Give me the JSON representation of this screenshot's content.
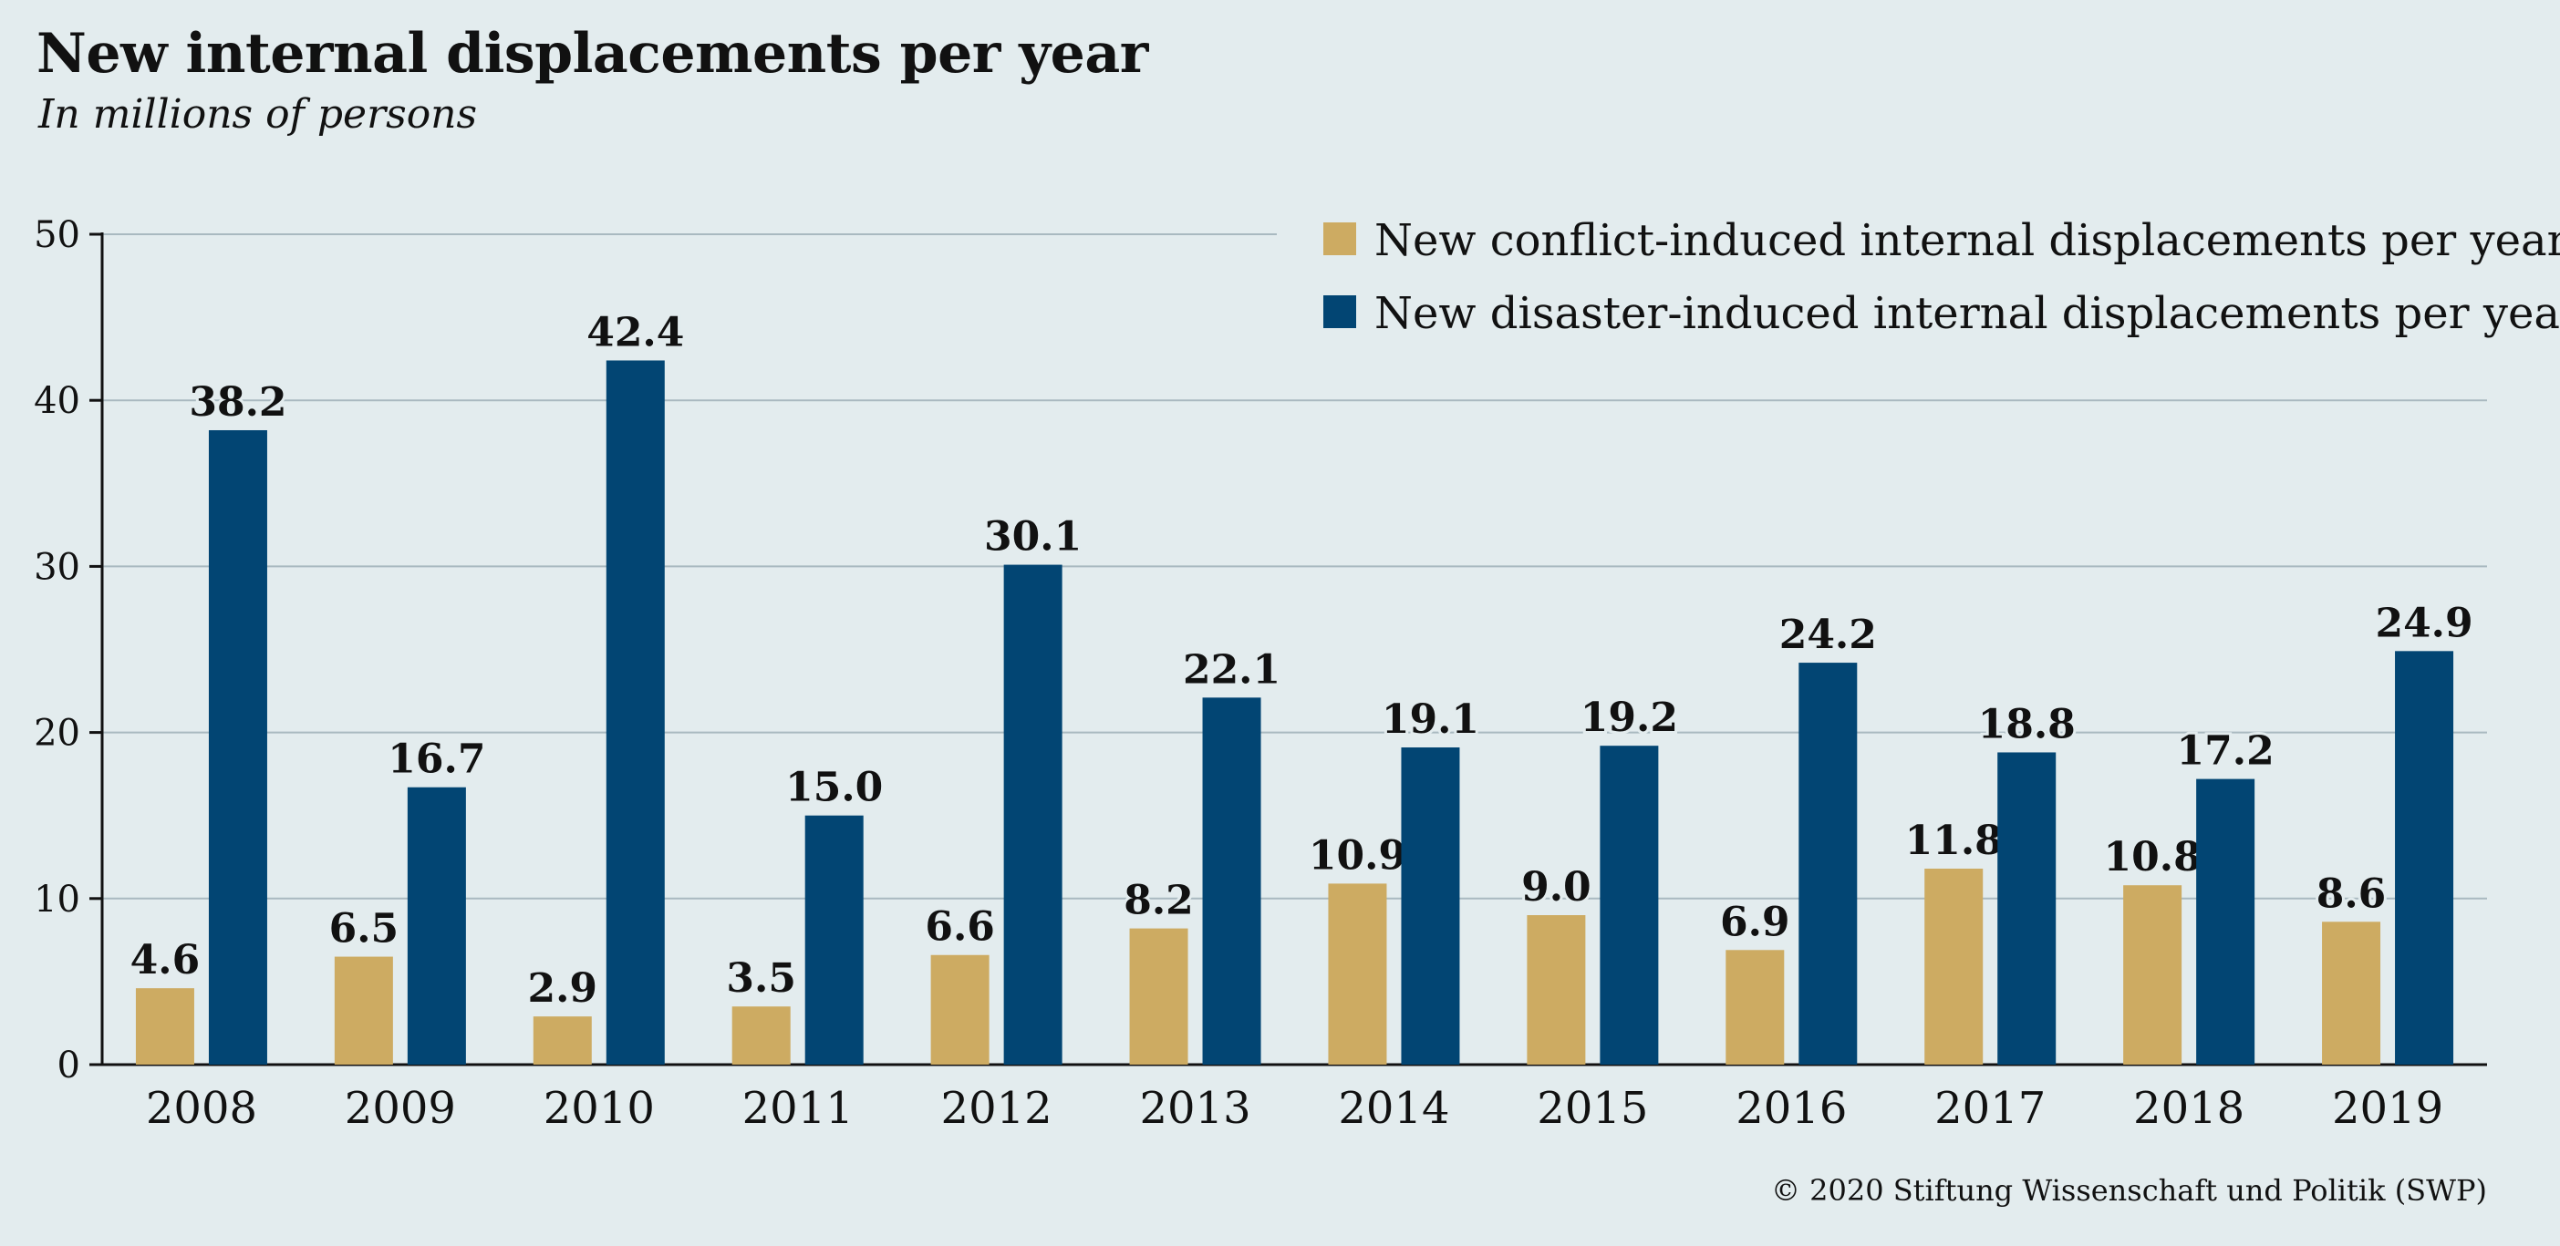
{
  "header": {
    "title": "New internal displacements per year",
    "subtitle": "In millions of persons"
  },
  "footer": {
    "source": "© 2020 Stiftung Wissenschaft und Politik (SWP)"
  },
  "colors": {
    "background": "#e3ecee",
    "conflict": "#cdab62",
    "disaster": "#024573",
    "gridline": "#a9b9c0",
    "axis": "#111111"
  },
  "chart_data": {
    "type": "bar",
    "categories": [
      "2008",
      "2009",
      "2010",
      "2011",
      "2012",
      "2013",
      "2014",
      "2015",
      "2016",
      "2017",
      "2018",
      "2019"
    ],
    "series": [
      {
        "name": "New conflict-induced internal displacements per year",
        "color": "#cdab62",
        "values": [
          4.6,
          6.5,
          2.9,
          3.5,
          6.6,
          8.2,
          10.9,
          9.0,
          6.9,
          11.8,
          10.8,
          8.6
        ],
        "labels": [
          "4.6",
          "6.5",
          "2.9",
          "3.5",
          "6.6",
          "8.2",
          "10.9",
          "9.0",
          "6.9",
          "11.8",
          "10.8",
          "8.6"
        ]
      },
      {
        "name": "New disaster-induced internal displacements per year",
        "color": "#024573",
        "values": [
          38.2,
          16.7,
          42.4,
          15.0,
          30.1,
          22.1,
          19.1,
          19.2,
          24.2,
          18.8,
          17.2,
          24.9
        ],
        "labels": [
          "38.2",
          "16.7",
          "42.4",
          "15.0",
          "30.1",
          "22.1",
          "19.1",
          "19.2",
          "24.2",
          "18.8",
          "17.2",
          "24.9"
        ]
      }
    ],
    "ylim": [
      0,
      50
    ],
    "yticks": [
      0,
      10,
      20,
      30,
      40,
      50
    ],
    "grid": true,
    "legend_position": "top-right"
  }
}
